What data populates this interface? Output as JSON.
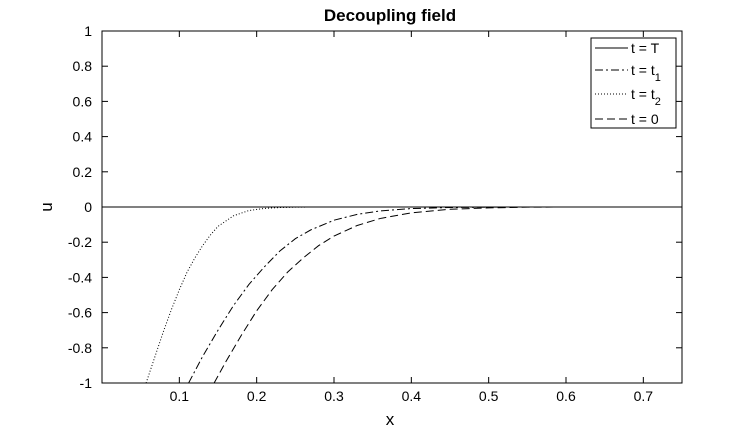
{
  "chart_data": {
    "type": "line",
    "title": "Decoupling field",
    "xlabel": "x",
    "ylabel": "u",
    "xlim": [
      0,
      0.75
    ],
    "ylim": [
      -1,
      1
    ],
    "xticks": [
      0.1,
      0.2,
      0.3,
      0.4,
      0.5,
      0.6,
      0.7
    ],
    "xtick_labels": [
      "0.1",
      "0.2",
      "0.3",
      "0.4",
      "0.5",
      "0.6",
      "0.7"
    ],
    "yticks": [
      -1,
      -0.8,
      -0.6,
      -0.4,
      -0.2,
      0,
      0.2,
      0.4,
      0.6,
      0.8,
      1
    ],
    "ytick_labels": [
      "-1",
      "-0.8",
      "-0.6",
      "-0.4",
      "-0.2",
      "0",
      "0.2",
      "0.4",
      "0.6",
      "0.8",
      "1"
    ],
    "grid": false,
    "legend_position": "top-right",
    "series": [
      {
        "name": "t = T",
        "name_main": "t = T",
        "name_sub": "",
        "dash": "solid",
        "x": [
          0,
          0.75
        ],
        "y": [
          0,
          0
        ]
      },
      {
        "name": "t = t1",
        "name_main": "t = t",
        "name_sub": "1",
        "dash": "dashdot",
        "x": [
          0.112,
          0.13,
          0.15,
          0.17,
          0.19,
          0.21,
          0.23,
          0.25,
          0.27,
          0.3,
          0.33,
          0.36,
          0.4,
          0.45,
          0.5,
          0.55
        ],
        "y": [
          -1,
          -0.85,
          -0.7,
          -0.56,
          -0.44,
          -0.34,
          -0.25,
          -0.18,
          -0.13,
          -0.075,
          -0.042,
          -0.022,
          -0.009,
          -0.003,
          -0.001,
          0
        ]
      },
      {
        "name": "t = t2",
        "name_main": "t = t",
        "name_sub": "2",
        "dash": "dotted",
        "x": [
          0.057,
          0.07,
          0.08,
          0.09,
          0.1,
          0.11,
          0.12,
          0.13,
          0.14,
          0.15,
          0.17,
          0.19,
          0.21,
          0.23,
          0.25,
          0.27,
          0.3
        ],
        "y": [
          -1,
          -0.83,
          -0.7,
          -0.58,
          -0.47,
          -0.37,
          -0.29,
          -0.22,
          -0.16,
          -0.11,
          -0.05,
          -0.02,
          -0.008,
          -0.003,
          -0.001,
          0,
          0
        ]
      },
      {
        "name": "t = 0",
        "name_main": "t = 0",
        "name_sub": "",
        "dash": "dashed",
        "x": [
          0.145,
          0.16,
          0.18,
          0.2,
          0.22,
          0.24,
          0.26,
          0.28,
          0.3,
          0.33,
          0.36,
          0.4,
          0.45,
          0.5,
          0.55,
          0.6
        ],
        "y": [
          -1,
          -0.88,
          -0.73,
          -0.59,
          -0.47,
          -0.37,
          -0.29,
          -0.22,
          -0.165,
          -0.105,
          -0.065,
          -0.033,
          -0.013,
          -0.005,
          -0.001,
          0
        ]
      }
    ]
  }
}
